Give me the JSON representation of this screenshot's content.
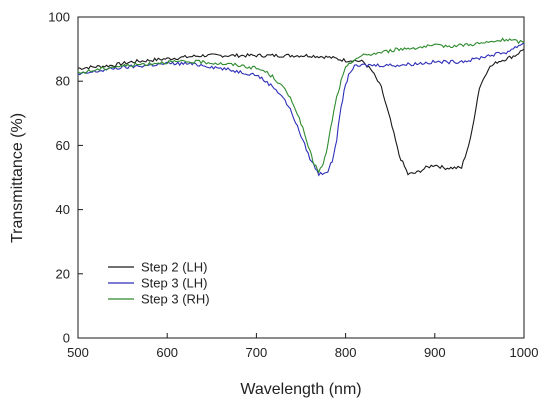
{
  "chart_data": {
    "type": "line",
    "xlabel": "Wavelength (nm)",
    "ylabel": "Transmittance (%)",
    "xlim": [
      500,
      1000
    ],
    "ylim": [
      0,
      100
    ],
    "xticks": [
      500,
      600,
      700,
      800,
      900,
      1000
    ],
    "yticks": [
      0,
      20,
      40,
      60,
      80,
      100
    ],
    "grid": false,
    "legend_position": "bottom-left",
    "series": [
      {
        "name": "Step 2 (LH)",
        "color": "#1a1a1a",
        "points": [
          [
            500,
            84
          ],
          [
            520,
            84.5
          ],
          [
            540,
            85
          ],
          [
            560,
            86
          ],
          [
            580,
            86.5
          ],
          [
            600,
            87
          ],
          [
            620,
            87.5
          ],
          [
            640,
            88
          ],
          [
            660,
            88
          ],
          [
            680,
            88
          ],
          [
            700,
            88
          ],
          [
            720,
            88
          ],
          [
            740,
            88
          ],
          [
            760,
            88
          ],
          [
            780,
            87.5
          ],
          [
            790,
            87
          ],
          [
            800,
            86.5
          ],
          [
            810,
            86.5
          ],
          [
            820,
            86
          ],
          [
            830,
            83
          ],
          [
            840,
            78
          ],
          [
            850,
            68
          ],
          [
            860,
            57
          ],
          [
            870,
            51
          ],
          [
            880,
            51.5
          ],
          [
            890,
            53
          ],
          [
            900,
            54
          ],
          [
            910,
            53
          ],
          [
            920,
            53
          ],
          [
            930,
            53
          ],
          [
            940,
            62
          ],
          [
            950,
            78
          ],
          [
            960,
            84
          ],
          [
            970,
            86
          ],
          [
            980,
            87
          ],
          [
            990,
            88
          ],
          [
            1000,
            90
          ]
        ]
      },
      {
        "name": "Step 3 (LH)",
        "color": "#2e2eb8",
        "points": [
          [
            500,
            82
          ],
          [
            520,
            83
          ],
          [
            540,
            84
          ],
          [
            560,
            84.5
          ],
          [
            580,
            85
          ],
          [
            600,
            85.5
          ],
          [
            620,
            85.5
          ],
          [
            640,
            85
          ],
          [
            660,
            84
          ],
          [
            680,
            83
          ],
          [
            700,
            82
          ],
          [
            710,
            80
          ],
          [
            720,
            78
          ],
          [
            730,
            75
          ],
          [
            740,
            70
          ],
          [
            750,
            63
          ],
          [
            760,
            56
          ],
          [
            770,
            51
          ],
          [
            780,
            52
          ],
          [
            785,
            55
          ],
          [
            790,
            62
          ],
          [
            795,
            72
          ],
          [
            800,
            79
          ],
          [
            805,
            83
          ],
          [
            810,
            84.5
          ],
          [
            820,
            85
          ],
          [
            840,
            85
          ],
          [
            860,
            85
          ],
          [
            880,
            85.5
          ],
          [
            900,
            86
          ],
          [
            920,
            86
          ],
          [
            940,
            86.5
          ],
          [
            960,
            88
          ],
          [
            980,
            89
          ],
          [
            1000,
            92
          ]
        ]
      },
      {
        "name": "Step 3 (RH)",
        "color": "#2e8b2e",
        "points": [
          [
            500,
            82.5
          ],
          [
            520,
            83.5
          ],
          [
            540,
            84.5
          ],
          [
            560,
            85
          ],
          [
            580,
            85.5
          ],
          [
            600,
            86
          ],
          [
            620,
            86
          ],
          [
            640,
            86
          ],
          [
            660,
            85.5
          ],
          [
            680,
            85
          ],
          [
            700,
            84
          ],
          [
            710,
            83
          ],
          [
            720,
            81
          ],
          [
            730,
            78
          ],
          [
            740,
            74
          ],
          [
            750,
            67
          ],
          [
            760,
            58
          ],
          [
            765,
            54
          ],
          [
            770,
            52
          ],
          [
            775,
            54
          ],
          [
            780,
            60
          ],
          [
            785,
            68
          ],
          [
            790,
            75
          ],
          [
            795,
            80
          ],
          [
            800,
            84
          ],
          [
            810,
            87
          ],
          [
            820,
            88
          ],
          [
            840,
            89
          ],
          [
            860,
            90
          ],
          [
            880,
            90.5
          ],
          [
            900,
            91
          ],
          [
            920,
            91
          ],
          [
            940,
            91.5
          ],
          [
            960,
            92
          ],
          [
            980,
            93
          ],
          [
            1000,
            92
          ]
        ]
      }
    ]
  }
}
